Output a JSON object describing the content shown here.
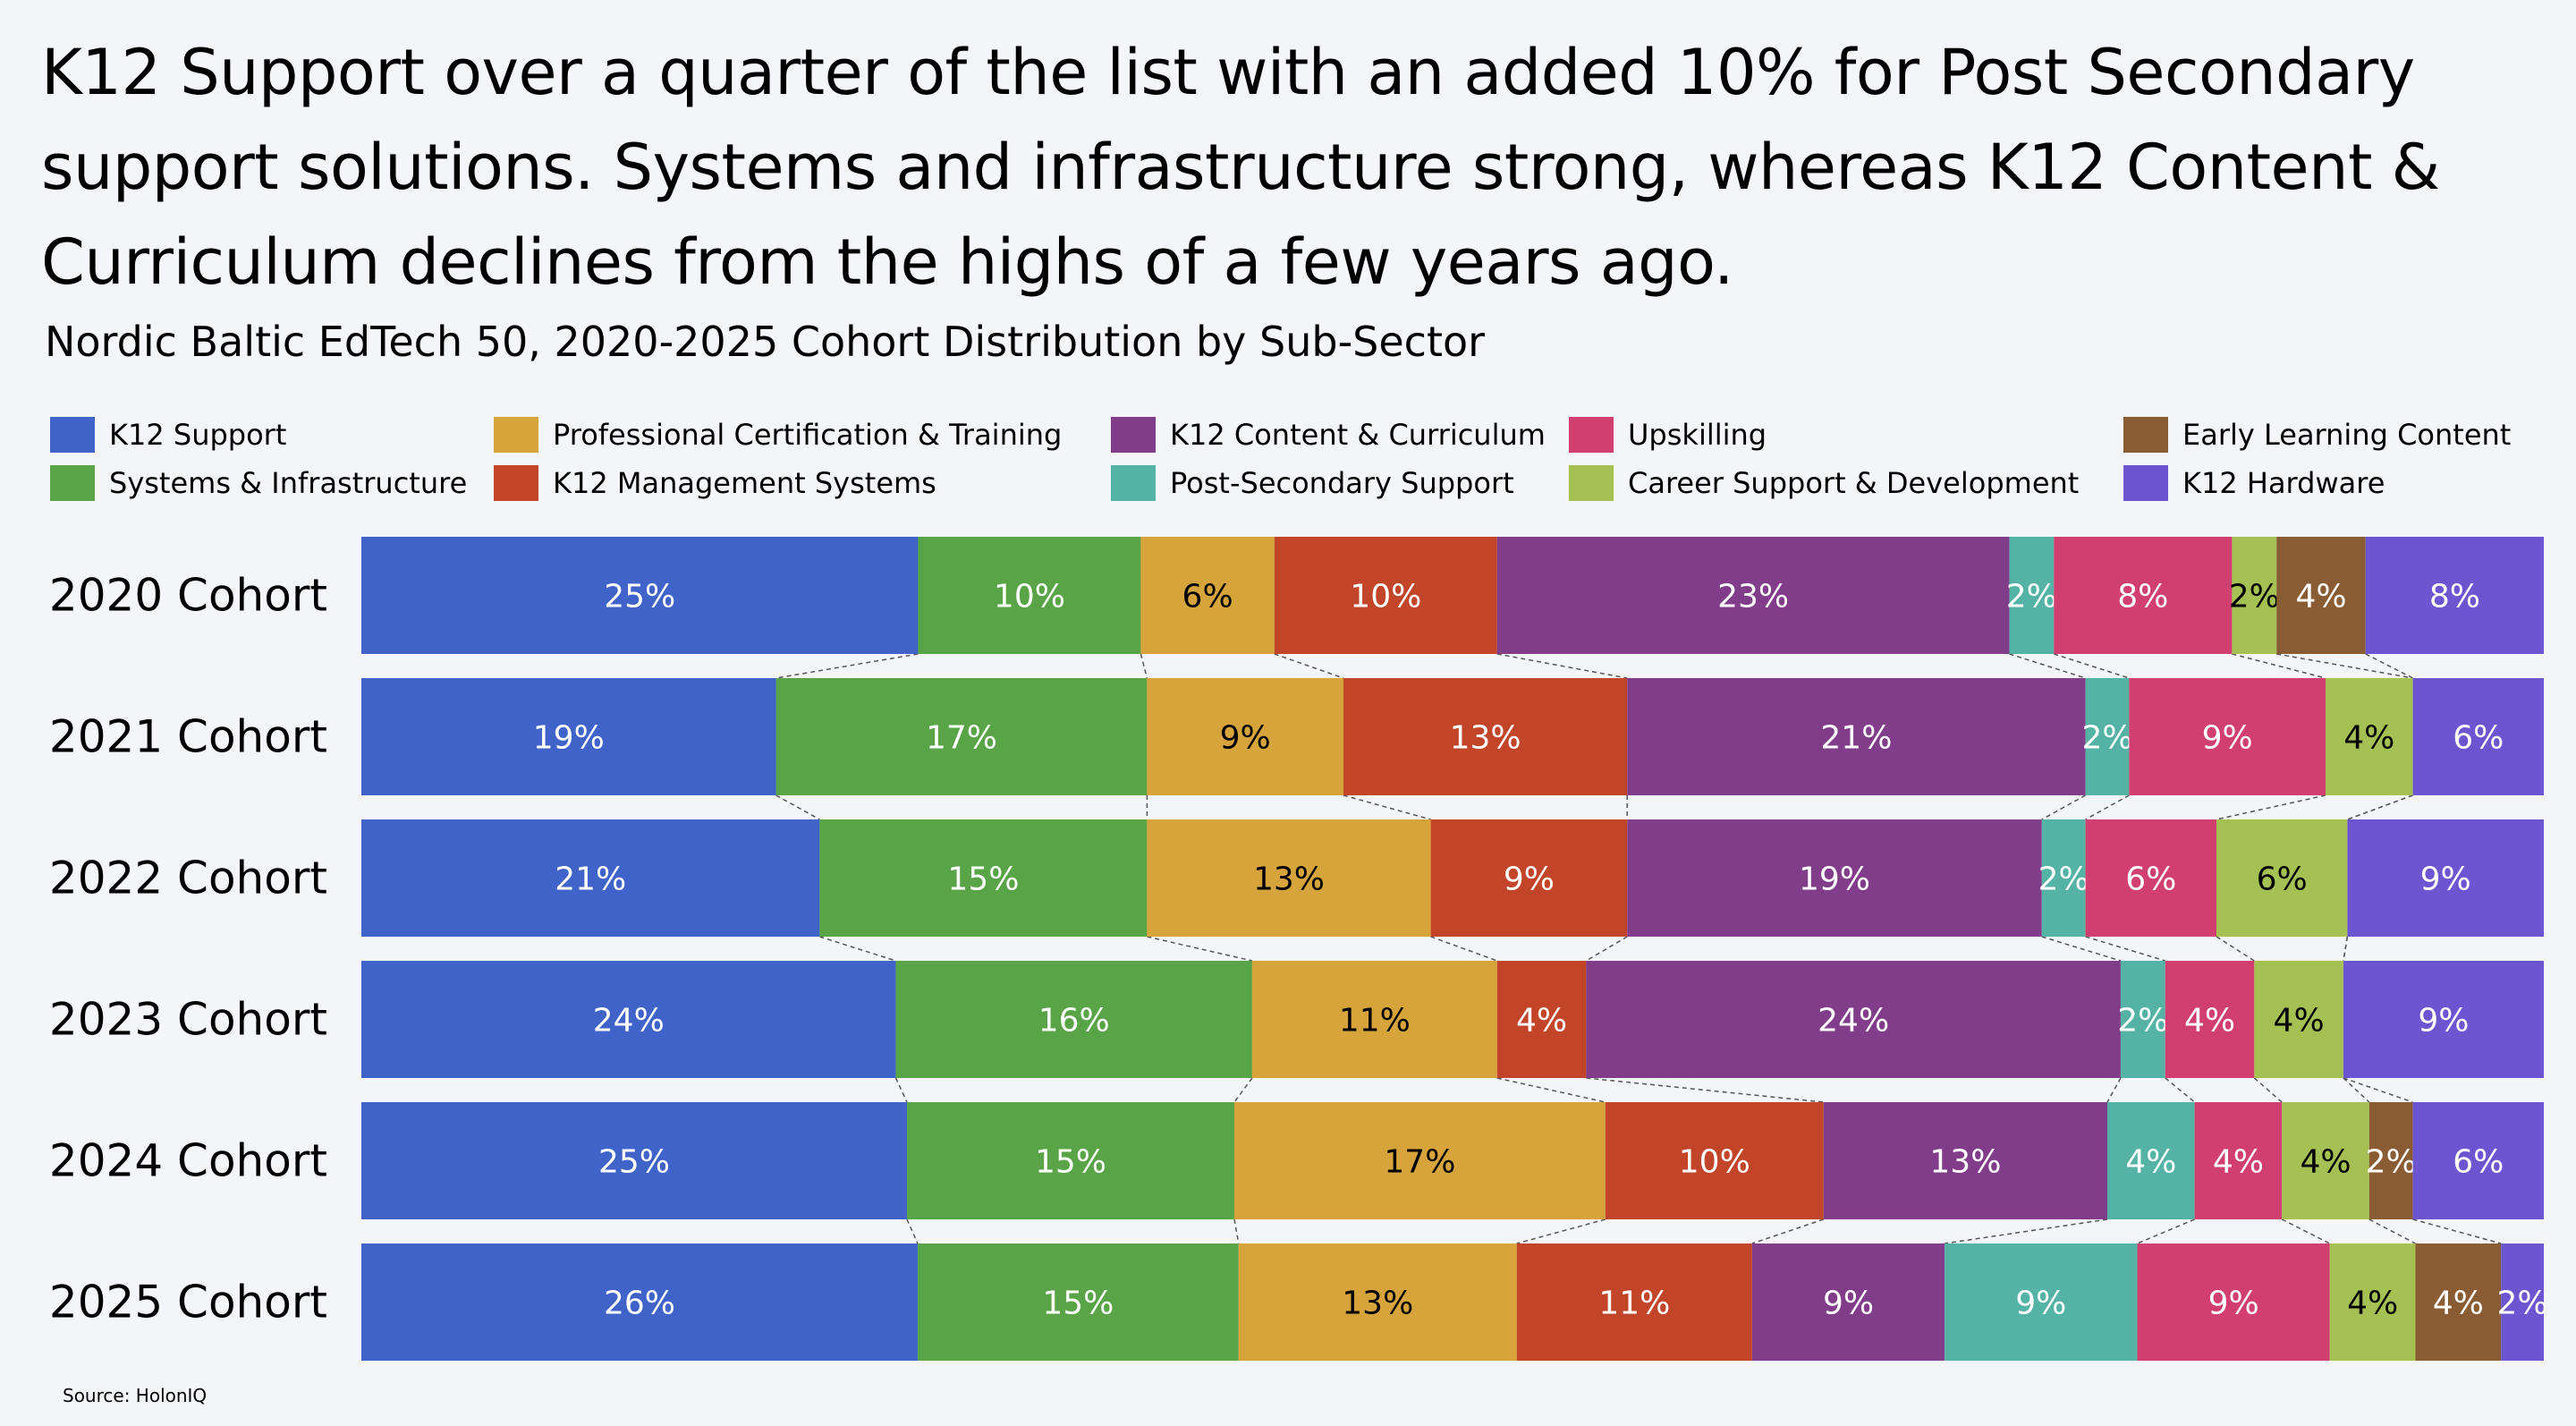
{
  "headline": "K12 Support over a quarter of the list with an added 10% for Post Secondary support solutions. Systems and infrastructure strong, whereas K12 Content & Curriculum declines from the highs of a few years ago.",
  "source": "Source: HolonIQ",
  "chart_data": {
    "type": "bar",
    "orientation": "horizontal",
    "stacked": true,
    "title": "Nordic Baltic EdTech 50, 2020-2025 Cohort Distribution by Sub-Sector",
    "categories": [
      "2020 Cohort",
      "2021 Cohort",
      "2022 Cohort",
      "2023 Cohort",
      "2024 Cohort",
      "2025 Cohort"
    ],
    "value_unit": "%",
    "legend_placement": "top",
    "connectors": "dashed lines linking segment boundaries between consecutive bars",
    "series": [
      {
        "name": "K12 Support",
        "color": "#3f63c9",
        "label_color": "#ffffff",
        "values": [
          25,
          19,
          21,
          24,
          25,
          26
        ]
      },
      {
        "name": "Systems & Infrastructure",
        "color": "#58a446",
        "label_color": "#ffffff",
        "values": [
          10,
          17,
          15,
          16,
          15,
          15
        ]
      },
      {
        "name": "Professional Certification & Training",
        "color": "#d6a43b",
        "label_color": "#000000",
        "values": [
          6,
          9,
          13,
          11,
          17,
          13
        ]
      },
      {
        "name": "K12 Management Systems",
        "color": "#c2452a",
        "label_color": "#ffffff",
        "values": [
          10,
          13,
          9,
          4,
          10,
          11
        ]
      },
      {
        "name": "K12 Content & Curriculum",
        "color": "#813d8a",
        "label_color": "#ffffff",
        "values": [
          23,
          21,
          19,
          24,
          13,
          9
        ]
      },
      {
        "name": "Post-Secondary Support",
        "color": "#55b3a5",
        "label_color": "#ffffff",
        "values": [
          2,
          2,
          2,
          2,
          4,
          9
        ]
      },
      {
        "name": "Upskilling",
        "color": "#d13f71",
        "label_color": "#ffffff",
        "values": [
          8,
          9,
          6,
          4,
          4,
          9
        ]
      },
      {
        "name": "Career Support & Development",
        "color": "#a5c153",
        "label_color": "#000000",
        "values": [
          2,
          4,
          6,
          4,
          4,
          4
        ]
      },
      {
        "name": "Early Learning Content",
        "color": "#8a5c33",
        "label_color": "#ffffff",
        "values": [
          4,
          0,
          0,
          0,
          2,
          4
        ]
      },
      {
        "name": "K12 Hardware",
        "color": "#6b55d0",
        "label_color": "#ffffff",
        "values": [
          8,
          6,
          9,
          9,
          6,
          2
        ]
      }
    ]
  }
}
